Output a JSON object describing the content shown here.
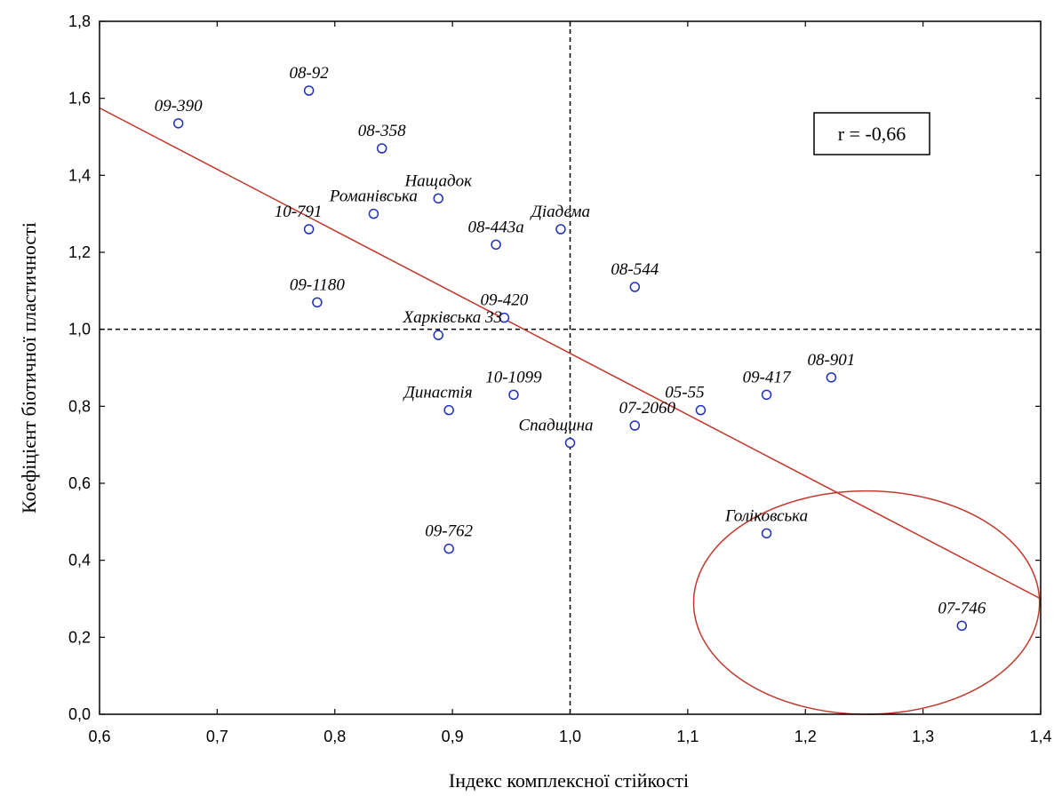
{
  "chart_data": {
    "type": "scatter",
    "xlabel": "Індекс комплексної стійкості",
    "ylabel": "Коефіцієнт біотичної пластичності",
    "xlim": [
      0.6,
      1.4
    ],
    "ylim": [
      0.0,
      1.8
    ],
    "x_ticks": [
      "0,6",
      "0,7",
      "0,8",
      "0,9",
      "1,0",
      "1,1",
      "1,2",
      "1,3",
      "1,4"
    ],
    "y_ticks": [
      "0,0",
      "0,2",
      "0,4",
      "0,6",
      "0,8",
      "1,0",
      "1,2",
      "1,4",
      "1,6",
      "1,8"
    ],
    "reference_lines": {
      "x": 1.0,
      "y": 1.0
    },
    "regression_line": {
      "from": [
        0.6,
        1.575
      ],
      "to": [
        1.4,
        0.3
      ]
    },
    "annotation": "r = -0,66",
    "highlight_ellipse": {
      "center": [
        1.252,
        0.29
      ],
      "rx": 0.147,
      "ry": 0.29,
      "color": "#c0392b"
    },
    "marker_color": "#1f2fbf",
    "line_color": "#c0392b",
    "points": [
      {
        "label": "09-390",
        "x": 0.667,
        "y": 1.535
      },
      {
        "label": "08-92",
        "x": 0.778,
        "y": 1.62
      },
      {
        "label": "08-358",
        "x": 0.84,
        "y": 1.47
      },
      {
        "label": "Нащадок",
        "x": 0.888,
        "y": 1.34
      },
      {
        "label": "Романівська",
        "x": 0.833,
        "y": 1.3
      },
      {
        "label": "10-791",
        "x": 0.778,
        "y": 1.26
      },
      {
        "label": "Діадема",
        "x": 0.992,
        "y": 1.26
      },
      {
        "label": "08-443а",
        "x": 0.937,
        "y": 1.22
      },
      {
        "label": "08-544",
        "x": 1.055,
        "y": 1.11
      },
      {
        "label": "09-1180",
        "x": 0.785,
        "y": 1.07
      },
      {
        "label": "09-420",
        "x": 0.944,
        "y": 1.03
      },
      {
        "label": "Харківська 33",
        "x": 0.888,
        "y": 0.985
      },
      {
        "label": "08-901",
        "x": 1.222,
        "y": 0.875
      },
      {
        "label": "09-417",
        "x": 1.167,
        "y": 0.83
      },
      {
        "label": "10-1099",
        "x": 0.952,
        "y": 0.83
      },
      {
        "label": "Династія",
        "x": 0.897,
        "y": 0.79
      },
      {
        "label": "05-55",
        "x": 1.111,
        "y": 0.79
      },
      {
        "label": "07-2060",
        "x": 1.055,
        "y": 0.75
      },
      {
        "label": "Спадщина",
        "x": 1.0,
        "y": 0.705
      },
      {
        "label": "Голіковська",
        "x": 1.167,
        "y": 0.47
      },
      {
        "label": "09-762",
        "x": 0.897,
        "y": 0.43
      },
      {
        "label": "07-746",
        "x": 1.333,
        "y": 0.23
      }
    ]
  }
}
